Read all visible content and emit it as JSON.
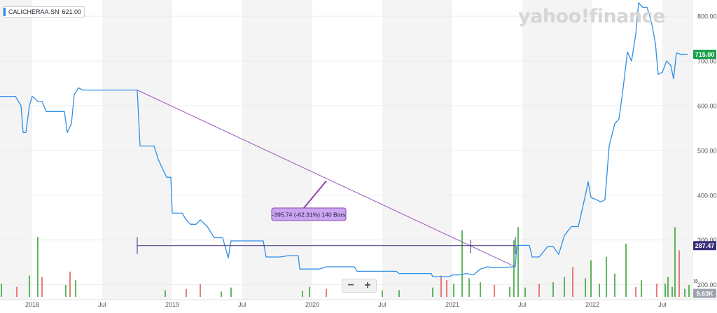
{
  "ticker": {
    "symbol": "CALICHERAA.SN",
    "value": "621.00",
    "color": "#2f8ee5"
  },
  "watermark": "yahoo!finance",
  "price_badge": {
    "label": "715.00",
    "color": "#16a34a"
  },
  "crosshair_badge": {
    "label": "287.47",
    "color": "#3b2d7a"
  },
  "volume_badge": {
    "label": "9.63K",
    "color": "#9ca3af"
  },
  "zoom": {
    "minus": "−",
    "plus": "+"
  },
  "expand_icon": "»",
  "chart_data": {
    "type": "line",
    "title": "",
    "xlabel": "",
    "ylabel": "",
    "x_tick_labels": [
      "2018",
      "Jul",
      "2019",
      "Jul",
      "2020",
      "Jul",
      "2021",
      "Jul",
      "2022",
      "Jul"
    ],
    "x_tick_positions": [
      2018.0,
      2018.5,
      2019.0,
      2019.5,
      2020.0,
      2020.5,
      2021.0,
      2021.5,
      2022.0,
      2022.5
    ],
    "xlim": [
      2017.77,
      2022.72
    ],
    "ylim": [
      190,
      830
    ],
    "y_ticks": [
      200,
      300,
      400,
      500,
      600,
      700,
      800
    ],
    "y_tick_labels": [
      "200.00",
      "300.00",
      "400.00",
      "500.00",
      "600.00",
      "700.00",
      "800.00"
    ],
    "grid": "alternating-year-bands",
    "series": [
      {
        "name": "",
        "color": "#2f8ee5",
        "points": [
          [
            2017.77,
            621
          ],
          [
            2017.88,
            621
          ],
          [
            2017.92,
            600
          ],
          [
            2017.935,
            540
          ],
          [
            2017.955,
            540
          ],
          [
            2017.98,
            600
          ],
          [
            2018.0,
            621
          ],
          [
            2018.04,
            610
          ],
          [
            2018.07,
            610
          ],
          [
            2018.1,
            587
          ],
          [
            2018.23,
            587
          ],
          [
            2018.25,
            540
          ],
          [
            2018.28,
            560
          ],
          [
            2018.3,
            625
          ],
          [
            2018.33,
            640
          ],
          [
            2018.36,
            635
          ],
          [
            2018.75,
            635
          ],
          [
            2018.77,
            510
          ],
          [
            2018.87,
            510
          ],
          [
            2018.9,
            480
          ],
          [
            2018.93,
            460
          ],
          [
            2018.96,
            440
          ],
          [
            2018.99,
            440
          ],
          [
            2019.0,
            360
          ],
          [
            2019.07,
            360
          ],
          [
            2019.1,
            345
          ],
          [
            2019.13,
            335
          ],
          [
            2019.17,
            335
          ],
          [
            2019.2,
            345
          ],
          [
            2019.25,
            330
          ],
          [
            2019.3,
            305
          ],
          [
            2019.36,
            305
          ],
          [
            2019.4,
            260
          ],
          [
            2019.42,
            298
          ],
          [
            2019.6,
            298
          ],
          [
            2019.65,
            298
          ],
          [
            2019.67,
            262
          ],
          [
            2019.77,
            262
          ],
          [
            2019.83,
            265
          ],
          [
            2019.9,
            265
          ],
          [
            2019.91,
            235
          ],
          [
            2020.05,
            235
          ],
          [
            2020.1,
            240
          ],
          [
            2020.3,
            240
          ],
          [
            2020.32,
            230
          ],
          [
            2020.6,
            230
          ],
          [
            2020.62,
            225
          ],
          [
            2020.85,
            225
          ],
          [
            2020.86,
            218
          ],
          [
            2020.98,
            218
          ],
          [
            2021.0,
            222
          ],
          [
            2021.05,
            222
          ],
          [
            2021.1,
            225
          ],
          [
            2021.15,
            222
          ],
          [
            2021.2,
            235
          ],
          [
            2021.25,
            240
          ],
          [
            2021.3,
            238
          ],
          [
            2021.45,
            240
          ],
          [
            2021.46,
            288
          ],
          [
            2021.55,
            288
          ],
          [
            2021.57,
            262
          ],
          [
            2021.62,
            262
          ],
          [
            2021.68,
            285
          ],
          [
            2021.72,
            285
          ],
          [
            2021.76,
            268
          ],
          [
            2021.8,
            310
          ],
          [
            2021.85,
            330
          ],
          [
            2021.9,
            330
          ],
          [
            2021.95,
            400
          ],
          [
            2021.97,
            430
          ],
          [
            2021.99,
            395
          ],
          [
            2022.03,
            390
          ],
          [
            2022.06,
            385
          ],
          [
            2022.09,
            390
          ],
          [
            2022.12,
            510
          ],
          [
            2022.16,
            560
          ],
          [
            2022.19,
            570
          ],
          [
            2022.22,
            640
          ],
          [
            2022.25,
            720
          ],
          [
            2022.28,
            700
          ],
          [
            2022.31,
            760
          ],
          [
            2022.33,
            830
          ],
          [
            2022.36,
            820
          ],
          [
            2022.39,
            820
          ],
          [
            2022.42,
            790
          ],
          [
            2022.45,
            740
          ],
          [
            2022.47,
            670
          ],
          [
            2022.5,
            675
          ],
          [
            2022.53,
            700
          ],
          [
            2022.56,
            690
          ],
          [
            2022.58,
            660
          ],
          [
            2022.6,
            718
          ],
          [
            2022.63,
            715
          ],
          [
            2022.66,
            715
          ],
          [
            2022.68,
            715
          ]
        ]
      }
    ],
    "volume": {
      "up_color": "#2ca02c",
      "down_color": "#e0524e",
      "bars": [
        [
          2017.78,
          0.2,
          "up"
        ],
        [
          2017.89,
          0.15,
          "down"
        ],
        [
          2017.98,
          0.32,
          "up"
        ],
        [
          2018.04,
          0.9,
          "up"
        ],
        [
          2018.07,
          0.3,
          "down"
        ],
        [
          2018.24,
          0.18,
          "up"
        ],
        [
          2018.27,
          0.38,
          "down"
        ],
        [
          2018.31,
          0.25,
          "up"
        ],
        [
          2018.95,
          0.1,
          "up"
        ],
        [
          2019.1,
          0.12,
          "down"
        ],
        [
          2019.2,
          0.19,
          "down"
        ],
        [
          2019.35,
          0.08,
          "up"
        ],
        [
          2019.42,
          0.14,
          "up"
        ],
        [
          2019.93,
          0.09,
          "up"
        ],
        [
          2019.98,
          0.15,
          "up"
        ],
        [
          2020.1,
          0.12,
          "down"
        ],
        [
          2020.5,
          0.1,
          "up"
        ],
        [
          2020.62,
          0.1,
          "up"
        ],
        [
          2020.86,
          0.14,
          "up"
        ],
        [
          2020.92,
          0.32,
          "down"
        ],
        [
          2020.96,
          0.25,
          "down"
        ],
        [
          2021.01,
          0.2,
          "up"
        ],
        [
          2021.07,
          1.0,
          "up"
        ],
        [
          2021.12,
          0.28,
          "up"
        ],
        [
          2021.2,
          0.22,
          "up"
        ],
        [
          2021.3,
          0.18,
          "down"
        ],
        [
          2021.41,
          0.15,
          "up"
        ],
        [
          2021.44,
          0.85,
          "up"
        ],
        [
          2021.47,
          1.05,
          "up"
        ],
        [
          2021.52,
          0.14,
          "up"
        ],
        [
          2021.62,
          0.2,
          "down"
        ],
        [
          2021.72,
          0.22,
          "up"
        ],
        [
          2021.8,
          0.3,
          "up"
        ],
        [
          2021.86,
          0.45,
          "down"
        ],
        [
          2021.95,
          0.28,
          "up"
        ],
        [
          2021.99,
          0.55,
          "up"
        ],
        [
          2022.05,
          0.2,
          "up"
        ],
        [
          2022.1,
          0.6,
          "up"
        ],
        [
          2022.16,
          0.35,
          "up"
        ],
        [
          2022.24,
          0.8,
          "up"
        ],
        [
          2022.31,
          0.15,
          "down"
        ],
        [
          2022.35,
          0.25,
          "up"
        ],
        [
          2022.46,
          0.2,
          "down"
        ],
        [
          2022.52,
          0.2,
          "up"
        ],
        [
          2022.54,
          0.3,
          "up"
        ],
        [
          2022.57,
          0.15,
          "up"
        ],
        [
          2022.59,
          1.05,
          "up"
        ],
        [
          2022.62,
          0.7,
          "down"
        ],
        [
          2022.66,
          0.12,
          "up"
        ],
        [
          2022.69,
          0.18,
          "up"
        ]
      ]
    },
    "annotations": {
      "trendline": {
        "from": [
          2018.75,
          635
        ],
        "to": [
          2021.45,
          240
        ],
        "color": "#9b59b6"
      },
      "range_line": {
        "y": 287.47,
        "from_x": 2018.75,
        "to_x": 2021.45,
        "color": "#3b2d7a"
      },
      "vertical_marker": {
        "x": 2021.13
      },
      "callout": {
        "text": "-395.74 (-62.31%) 140 Bars",
        "anchor": [
          2020.1,
          432
        ],
        "fill": "#c9a7f0",
        "border": "#8e44ad"
      }
    }
  }
}
